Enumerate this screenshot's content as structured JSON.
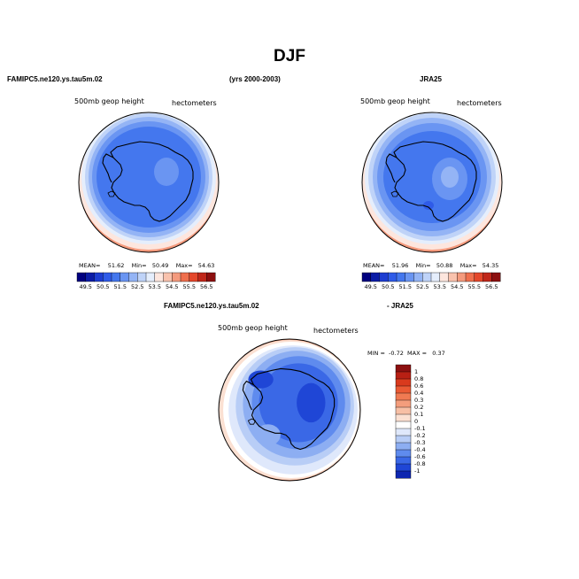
{
  "title": "DJF",
  "panel_top_left": {
    "case_label": "FAMIPC5.ne120.ys.tau5m.02",
    "field_label": "500mb geop height",
    "units_label": "hectometers",
    "stats": {
      "mean_label": "MEAN=",
      "mean": "51.62",
      "min_label": "Min=",
      "min": "50.49",
      "max_label": "Max=",
      "max": "54.63"
    }
  },
  "years_label": "(yrs 2000-2003)",
  "panel_top_right": {
    "case_label": "JRA25",
    "field_label": "500mb geop height",
    "units_label": "hectometers",
    "stats": {
      "mean_label": "MEAN=",
      "mean": "51.96",
      "min_label": "Min=",
      "min": "50.88",
      "max_label": "Max=",
      "max": "54.35"
    }
  },
  "panel_diff": {
    "case_label": "FAMIPC5.ne120.ys.tau5m.02",
    "minus_label": "- JRA25",
    "field_label": "500mb geop height",
    "units_label": "hectometers",
    "minmax": {
      "min_label": "MIN =",
      "min": "-0.72",
      "max_label": "MAX =",
      "max": "0.37"
    }
  },
  "chart_data": [
    {
      "type": "heatmap",
      "projection": "south-polar-stereographic",
      "title": "FAMIPC5.ne120.ys.tau5m.02",
      "variable": "500mb geop height",
      "units": "hectometers",
      "mean": 51.62,
      "min": 50.49,
      "max": 54.63,
      "colorbar_ticks": [
        "49.5",
        "50.5",
        "51.5",
        "52.5",
        "53.5",
        "54.5",
        "55.5",
        "56.5"
      ],
      "colorbar_colors": [
        "#00007f",
        "#0b1ca6",
        "#1d3dd1",
        "#2f5be8",
        "#4477ee",
        "#6a95f2",
        "#94b4f5",
        "#bfd3f8",
        "#e5eefc",
        "#fde6de",
        "#f9c2ad",
        "#f49a7d",
        "#ef6f4d",
        "#e4472b",
        "#c0271a",
        "#8c1010"
      ]
    },
    {
      "type": "heatmap",
      "projection": "south-polar-stereographic",
      "title": "JRA25",
      "variable": "500mb geop height",
      "units": "hectometers",
      "mean": 51.96,
      "min": 50.88,
      "max": 54.35,
      "colorbar_ticks": [
        "49.5",
        "50.5",
        "51.5",
        "52.5",
        "53.5",
        "54.5",
        "55.5",
        "56.5"
      ],
      "colorbar_colors": [
        "#00007f",
        "#0b1ca6",
        "#1d3dd1",
        "#2f5be8",
        "#4477ee",
        "#6a95f2",
        "#94b4f5",
        "#bfd3f8",
        "#e5eefc",
        "#fde6de",
        "#f9c2ad",
        "#f49a7d",
        "#ef6f4d",
        "#e4472b",
        "#c0271a",
        "#8c1010"
      ]
    },
    {
      "type": "heatmap",
      "projection": "south-polar-stereographic",
      "title": "FAMIPC5.ne120.ys.tau5m.02 - JRA25",
      "variable": "500mb geop height",
      "units": "hectometers",
      "min": -0.72,
      "max": 0.37,
      "colorbar_ticks": [
        "1",
        "0.8",
        "0.6",
        "0.4",
        "0.3",
        "0.2",
        "0.1",
        "0",
        "-0.1",
        "-0.2",
        "-0.3",
        "-0.4",
        "-0.6",
        "-0.8",
        "-1"
      ],
      "colorbar_colors": [
        "#8c1010",
        "#b82014",
        "#d93a1d",
        "#ea5a34",
        "#f07a52",
        "#f49d7c",
        "#f7bfa5",
        "#fbe0d2",
        "#ffffff",
        "#dfe8fb",
        "#b8cdf6",
        "#8daef2",
        "#5f8bee",
        "#3a68e6",
        "#1f46d6",
        "#0d26b0"
      ]
    }
  ]
}
